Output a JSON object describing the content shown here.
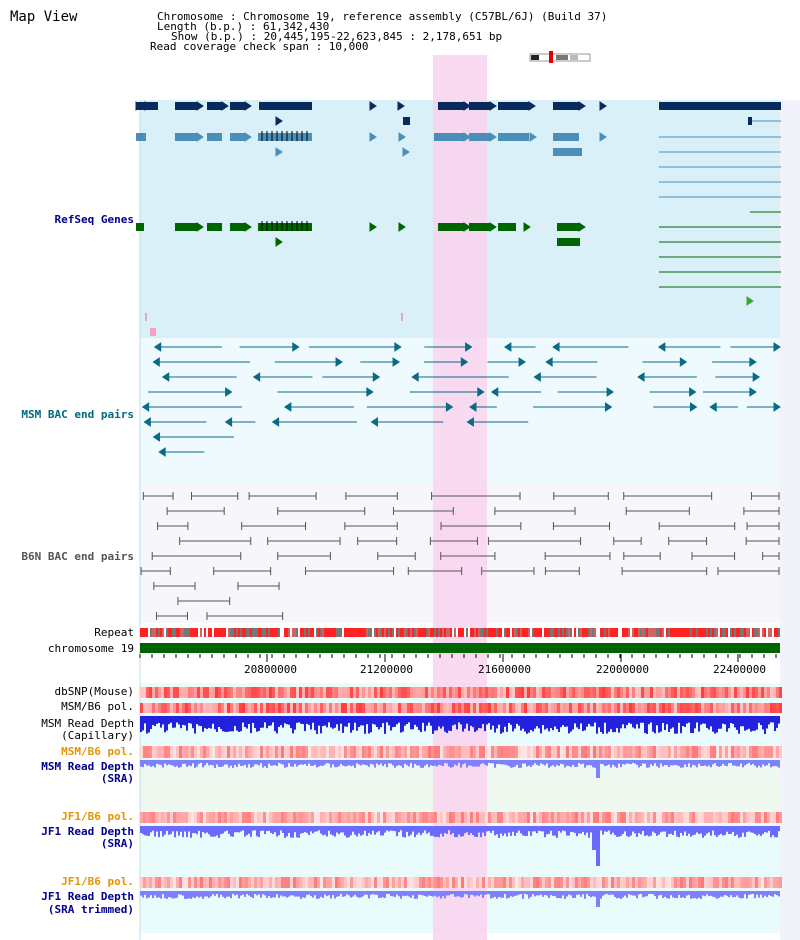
{
  "title": "Map View",
  "info": [
    "Chromosome    : Chromosome 19, reference assembly (C57BL/6J) (Build 37)",
    "Length (b.p.) : 61,342,430",
    "Show (b.p.) : 20,445,195-22,623,845 : 2,178,651 bp",
    "Read coverage check span : 10,000"
  ],
  "tracks": {
    "refseq": "RefSeq Genes",
    "msm_bac": "MSM BAC end pairs",
    "b6n_bac": "B6N BAC end pairs",
    "repeat": "Repeat",
    "chromosome": "chromosome 19",
    "dbsnp": "dbSNP(Mouse)",
    "msm_b6_pol_1": "MSM/B6 pol.",
    "msm_depth_cap_1": "MSM Read Depth",
    "msm_depth_cap_2": "(Capillary)",
    "msm_b6_pol_2": "MSM/B6 pol.",
    "msm_depth_sra_1": "MSM Read Depth",
    "msm_depth_sra_2": "(SRA)",
    "jf1_b6_pol_1": "JF1/B6 pol.",
    "jf1_depth_sra_1": "JF1 Read Depth",
    "jf1_depth_sra_2": "(SRA)",
    "jf1_b6_pol_2": "JF1/B6 pol.",
    "jf1_depth_trim_1": "JF1 Read Depth",
    "jf1_depth_trim_2": "(SRA trimmed)"
  },
  "axis_ticks": [
    "20800000",
    "21200000",
    "21600000",
    "22000000",
    "22400000"
  ],
  "colors": {
    "refseq_dark": "#0a2a5e",
    "refseq_mid": "#4b8fb8",
    "refseq_green": "#006400",
    "msm_bac": "#0b6a86",
    "b6n_bac": "#555555",
    "highlight": "#f9d3ee",
    "label_blue": "#00008b",
    "label_teal": "#006a7a",
    "label_orange": "#e69500",
    "depth_blue": "#2222dd",
    "depth_light": "#8080ff",
    "pol_red": "#ff4a4a"
  }
}
